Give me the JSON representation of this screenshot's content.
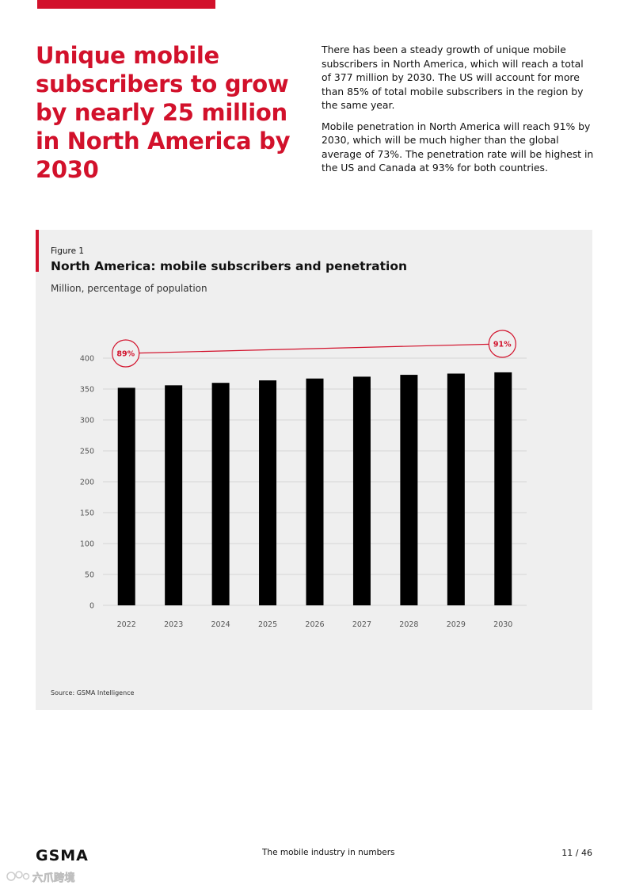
{
  "header": {
    "headline": "Unique mobile subscribers to grow by nearly 25 million in North America by 2030",
    "paragraphs": [
      "There has been a steady growth of unique mobile subscribers in North America, which will reach a total of 377 million by 2030. The US will account for more than 85% of total mobile subscribers in the region by the same year.",
      "Mobile penetration in North America will reach 91% by 2030, which will be much higher than the global average of 73%. The penetration rate will be highest in the US and Canada at 93% for both countries."
    ]
  },
  "figure": {
    "label": "Figure 1",
    "title": "North America: mobile subscribers and penetration",
    "subtitle": "Million, percentage of population",
    "source": "Source: GSMA Intelligence"
  },
  "chart_data": {
    "type": "bar",
    "title": "North America: mobile subscribers and penetration",
    "ylabel": "Million",
    "categories": [
      "2022",
      "2023",
      "2024",
      "2025",
      "2026",
      "2027",
      "2028",
      "2029",
      "2030"
    ],
    "series": [
      {
        "name": "Unique mobile subscribers (million)",
        "values": [
          352,
          356,
          360,
          364,
          367,
          370,
          373,
          375,
          377
        ]
      }
    ],
    "penetration": {
      "start_year": "2022",
      "end_year": "2030",
      "start_value": 89,
      "end_value": 91,
      "start_label": "89%",
      "end_label": "91%"
    },
    "ylim": [
      0,
      400
    ],
    "yticks": [
      0,
      50,
      100,
      150,
      200,
      250,
      300,
      350,
      400
    ],
    "grid": true,
    "colors": {
      "bars": "#000000",
      "penetration": "#d2112b",
      "grid": "#d6d6d6",
      "ticks": "#555555"
    }
  },
  "footer": {
    "logo": "GSMA",
    "center": "The mobile industry in numbers",
    "page": "11 / 46"
  },
  "watermark": {
    "text": "六爪跨境"
  },
  "colors": {
    "brand_red": "#d2112b",
    "panel_bg": "#efefef"
  }
}
